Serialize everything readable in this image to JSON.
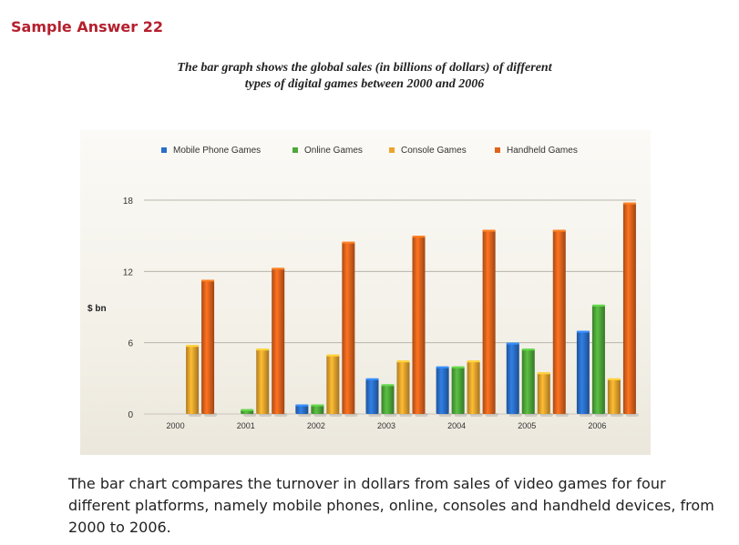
{
  "page": {
    "heading": "Sample Answer 22",
    "caption_line1": "The bar graph shows the global sales (in billions of dollars) of different",
    "caption_line2": "types of digital games between 2000 and 2006",
    "summary": "The bar chart compares the turnover in dollars from sales of video games for four different platforms, namely mobile phones, online, consoles and handheld devices, from 2000 to 2006."
  },
  "chart_data": {
    "type": "bar",
    "title": "",
    "xlabel": "",
    "ylabel": "$ bn",
    "ylim": [
      0,
      18
    ],
    "yticks": [
      0,
      6,
      12,
      18
    ],
    "grid": true,
    "legend_position": "top",
    "categories": [
      "2000",
      "2001",
      "2002",
      "2003",
      "2004",
      "2005",
      "2006"
    ],
    "series": [
      {
        "name": "Mobile Phone Games",
        "color": "#2a6fc9",
        "values": [
          0,
          0,
          0.8,
          3,
          4,
          6,
          7
        ]
      },
      {
        "name": "Online Games",
        "color": "#4ea83a",
        "values": [
          0,
          0.4,
          0.8,
          2.5,
          4,
          5.5,
          9.2
        ]
      },
      {
        "name": "Console Games",
        "color": "#eba42c",
        "values": [
          5.8,
          5.5,
          5,
          4.5,
          4.5,
          3.5,
          3
        ]
      },
      {
        "name": "Handheld Games",
        "color": "#e0641c",
        "values": [
          11.3,
          12.3,
          14.5,
          15,
          15.5,
          15.5,
          17.8
        ]
      }
    ]
  }
}
